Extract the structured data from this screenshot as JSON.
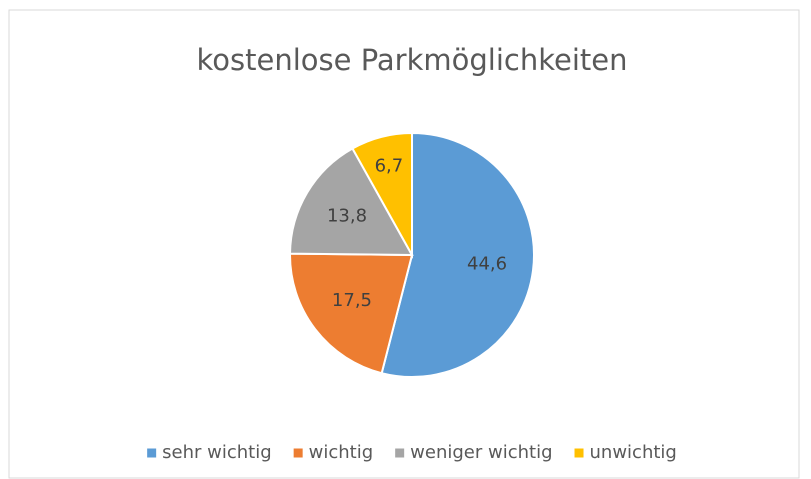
{
  "chart_data": {
    "type": "pie",
    "title": "kostenlose Parkmöglichkeiten",
    "categories": [
      "sehr wichtig",
      "wichtig",
      "weniger wichtig",
      "unwichtig"
    ],
    "values": [
      44.6,
      17.5,
      13.8,
      6.7
    ],
    "value_labels": [
      "44,6",
      "17,5",
      "13,8",
      "6,7"
    ],
    "colors": [
      "#5b9bd5",
      "#ed7d31",
      "#a5a5a5",
      "#ffc000"
    ],
    "legend": "bottom"
  }
}
